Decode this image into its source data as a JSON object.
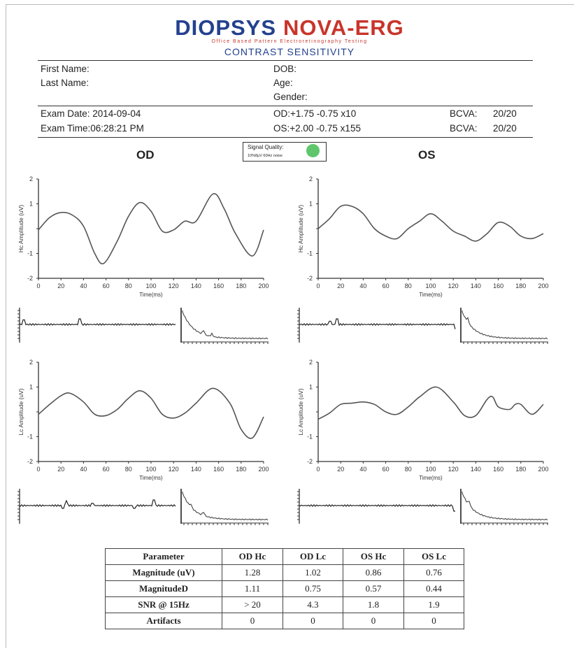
{
  "header": {
    "brand_left": "DIOPSYS",
    "brand_right": "NOVA-ERG",
    "subtitle": "Office Based Pattern Electroretinography Testing",
    "test_name": "CONTRAST SENSITIVITY"
  },
  "patient": {
    "first_name_label": "First Name:",
    "last_name_label": "Last Name:",
    "dob_label": "DOB:",
    "age_label": "Age:",
    "gender_label": "Gender:"
  },
  "exam": {
    "date": "Exam Date: 2014-09-04",
    "time": "Exam Time:06:28:21 PM",
    "od_rx": "OD:+1.75 -0.75 x10",
    "os_rx": "OS:+2.00 -0.75 x155",
    "bcva_label": "BCVA:",
    "od_bcva": "20/20",
    "os_bcva": "20/20"
  },
  "signal_quality": {
    "label": "Signal Quality:",
    "note": "10%8μV 60Hz noise",
    "color": "#5fc66b"
  },
  "eyes": {
    "od": "OD",
    "os": "OS"
  },
  "chart_data": [
    {
      "type": "line",
      "id": "od_hc",
      "ylabel": "Hc Amplitude (uV)",
      "xlabel": "Time(ms)",
      "xlim": [
        0,
        200
      ],
      "ylim": [
        -2,
        2
      ],
      "x": [
        0,
        10,
        20,
        30,
        40,
        50,
        58,
        70,
        80,
        90,
        100,
        110,
        120,
        130,
        140,
        155,
        165,
        175,
        190,
        200
      ],
      "y": [
        -0.05,
        0.45,
        0.65,
        0.55,
        0.1,
        -1.0,
        -1.4,
        -0.5,
        0.5,
        1.05,
        0.7,
        -0.1,
        -0.05,
        0.3,
        0.3,
        1.4,
        0.8,
        -0.2,
        -1.1,
        -0.05
      ]
    },
    {
      "type": "line",
      "id": "os_hc",
      "ylabel": "Hc Amplitude (uV)",
      "xlabel": "Time(ms)",
      "xlim": [
        0,
        200
      ],
      "ylim": [
        -2,
        2
      ],
      "x": [
        0,
        10,
        20,
        30,
        40,
        50,
        60,
        70,
        80,
        90,
        100,
        110,
        120,
        130,
        140,
        150,
        160,
        170,
        180,
        190,
        200
      ],
      "y": [
        0.0,
        0.4,
        0.9,
        0.9,
        0.6,
        0.0,
        -0.3,
        -0.4,
        0.0,
        0.3,
        0.6,
        0.3,
        -0.1,
        -0.3,
        -0.5,
        -0.2,
        0.25,
        0.1,
        -0.3,
        -0.4,
        -0.2
      ]
    },
    {
      "type": "line",
      "id": "od_lc",
      "ylabel": "Lc Amplitude (uV)",
      "xlabel": "Time(ms)",
      "xlim": [
        0,
        200
      ],
      "ylim": [
        -2,
        2
      ],
      "x": [
        0,
        10,
        20,
        28,
        40,
        50,
        60,
        70,
        80,
        90,
        100,
        110,
        120,
        130,
        140,
        155,
        170,
        180,
        190,
        200
      ],
      "y": [
        -0.1,
        0.3,
        0.65,
        0.75,
        0.4,
        -0.1,
        -0.15,
        0.1,
        0.55,
        0.85,
        0.55,
        -0.1,
        -0.25,
        -0.05,
        0.35,
        0.95,
        0.35,
        -0.7,
        -1.05,
        -0.2
      ]
    },
    {
      "type": "line",
      "id": "os_lc",
      "ylabel": "Lc Amplitude (uV)",
      "xlabel": "Time(ms)",
      "xlim": [
        0,
        200
      ],
      "ylim": [
        -2,
        2
      ],
      "x": [
        0,
        10,
        20,
        30,
        40,
        50,
        60,
        70,
        80,
        90,
        105,
        120,
        130,
        140,
        150,
        155,
        160,
        170,
        175,
        180,
        190,
        200
      ],
      "y": [
        -0.3,
        -0.05,
        0.3,
        0.35,
        0.4,
        0.3,
        0.0,
        -0.1,
        0.2,
        0.6,
        1.0,
        0.4,
        -0.15,
        -0.15,
        0.5,
        0.6,
        0.2,
        0.1,
        0.3,
        0.3,
        -0.1,
        0.3
      ]
    }
  ],
  "results": {
    "headers": [
      "Parameter",
      "OD Hc",
      "OD Lc",
      "OS Hc",
      "OS Lc"
    ],
    "rows": [
      [
        "Magnitude (uV)",
        "1.28",
        "1.02",
        "0.86",
        "0.76"
      ],
      [
        "MagnitudeD",
        "1.11",
        "0.75",
        "0.57",
        "0.44"
      ],
      [
        "SNR @ 15Hz",
        "> 20",
        "4.3",
        "1.8",
        "1.9"
      ],
      [
        "Artifacts",
        "0",
        "0",
        "0",
        "0"
      ]
    ]
  }
}
